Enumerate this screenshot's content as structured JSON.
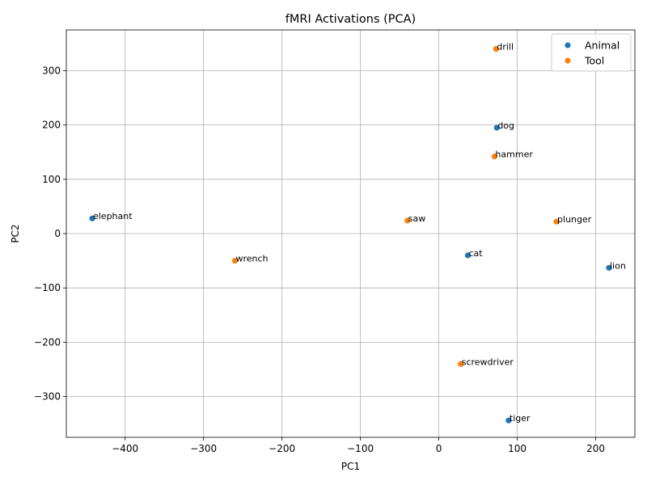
{
  "chart_data": {
    "type": "scatter",
    "title": "fMRI Activations (PCA)",
    "xlabel": "PC1",
    "ylabel": "PC2",
    "xlim": [
      -475,
      250
    ],
    "ylim": [
      -375,
      375
    ],
    "xticks": [
      -400,
      -300,
      -200,
      -100,
      0,
      100,
      200
    ],
    "yticks": [
      -300,
      -200,
      -100,
      0,
      100,
      200,
      300
    ],
    "grid": true,
    "legend_position": "top-right",
    "series": [
      {
        "name": "Animal",
        "color": "#1f77b4",
        "points": [
          {
            "label": "elephant",
            "x": -442,
            "y": 28
          },
          {
            "label": "dog",
            "x": 74,
            "y": 195
          },
          {
            "label": "cat",
            "x": 37,
            "y": -40
          },
          {
            "label": "lion",
            "x": 217,
            "y": -63
          },
          {
            "label": "tiger",
            "x": 89,
            "y": -344
          }
        ]
      },
      {
        "name": "Tool",
        "color": "#ff7f0e",
        "points": [
          {
            "label": "drill",
            "x": 73,
            "y": 340
          },
          {
            "label": "hammer",
            "x": 71,
            "y": 142
          },
          {
            "label": "saw",
            "x": -40,
            "y": 24
          },
          {
            "label": "plunger",
            "x": 150,
            "y": 22
          },
          {
            "label": "wrench",
            "x": -260,
            "y": -50
          },
          {
            "label": "screwdriver",
            "x": 28,
            "y": -240
          }
        ]
      }
    ]
  }
}
